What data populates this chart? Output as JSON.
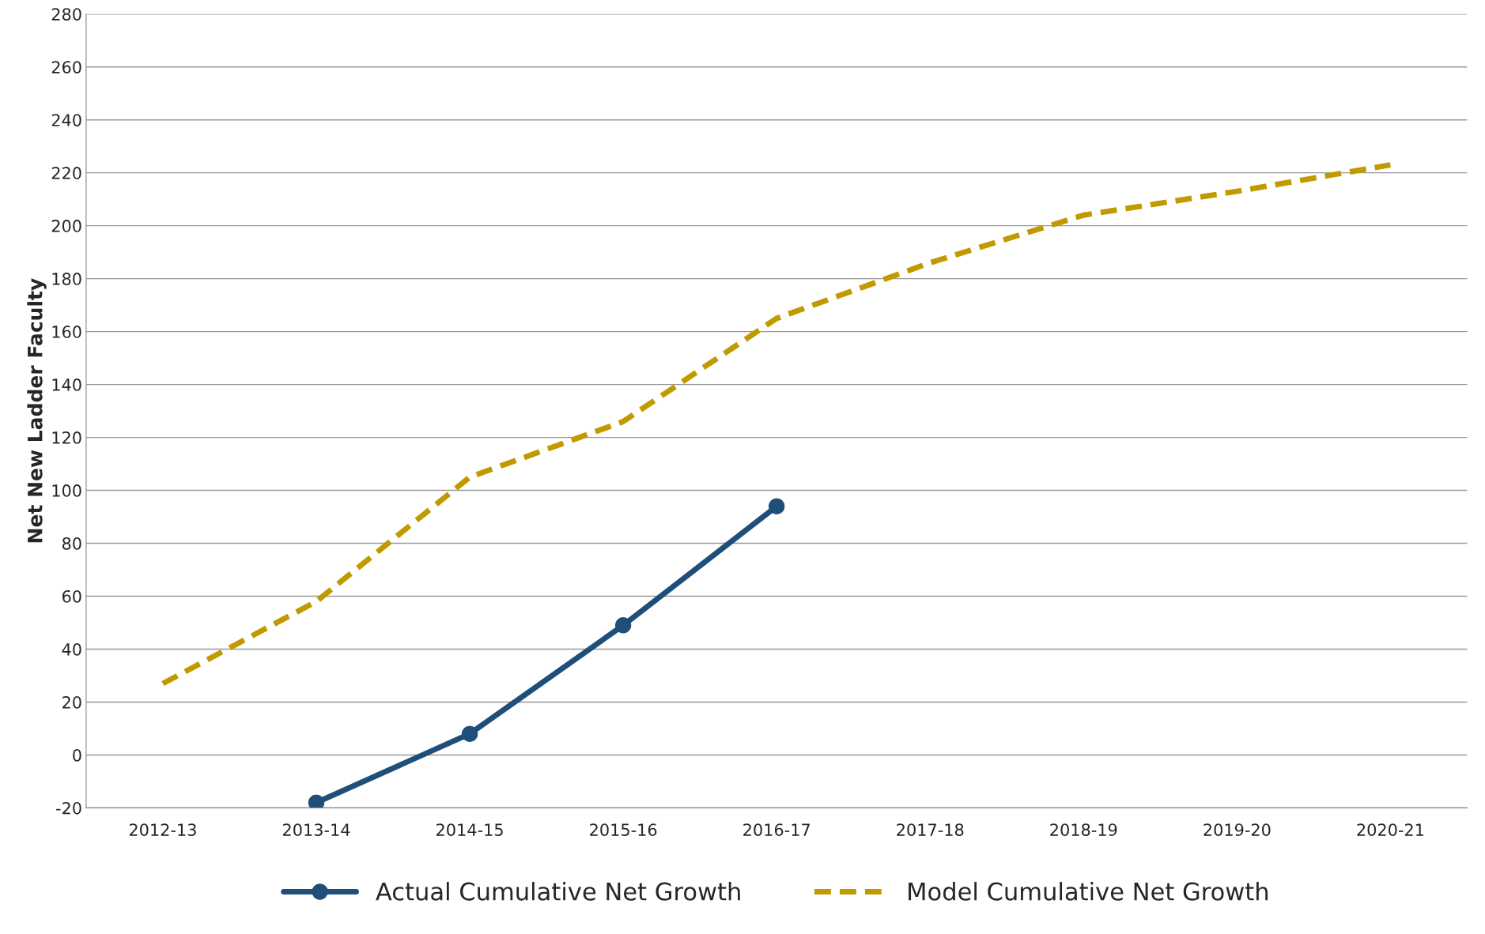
{
  "chart_data": {
    "type": "line",
    "ylabel": "Net New Ladder Faculty",
    "categories": [
      "2012-13",
      "2013-14",
      "2014-15",
      "2015-16",
      "2016-17",
      "2017-18",
      "2018-19",
      "2019-20",
      "2020-21"
    ],
    "series": [
      {
        "name": "Actual Cumulative Net Growth",
        "color": "#1f4e79",
        "marker": "circle",
        "line_style": "solid",
        "values": [
          null,
          -18,
          8,
          49,
          94,
          null,
          null,
          null,
          null
        ]
      },
      {
        "name": "Model Cumulative Net Growth",
        "color": "#c09a00",
        "marker": "none",
        "line_style": "dashed",
        "values": [
          27,
          58,
          105,
          126,
          165,
          186,
          204,
          213,
          223
        ]
      }
    ],
    "ylim": [
      -20,
      280
    ],
    "yticks": [
      -20,
      0,
      20,
      40,
      60,
      80,
      100,
      120,
      140,
      160,
      180,
      200,
      220,
      240,
      260,
      280
    ],
    "grid": "y",
    "legend": "bottom"
  }
}
